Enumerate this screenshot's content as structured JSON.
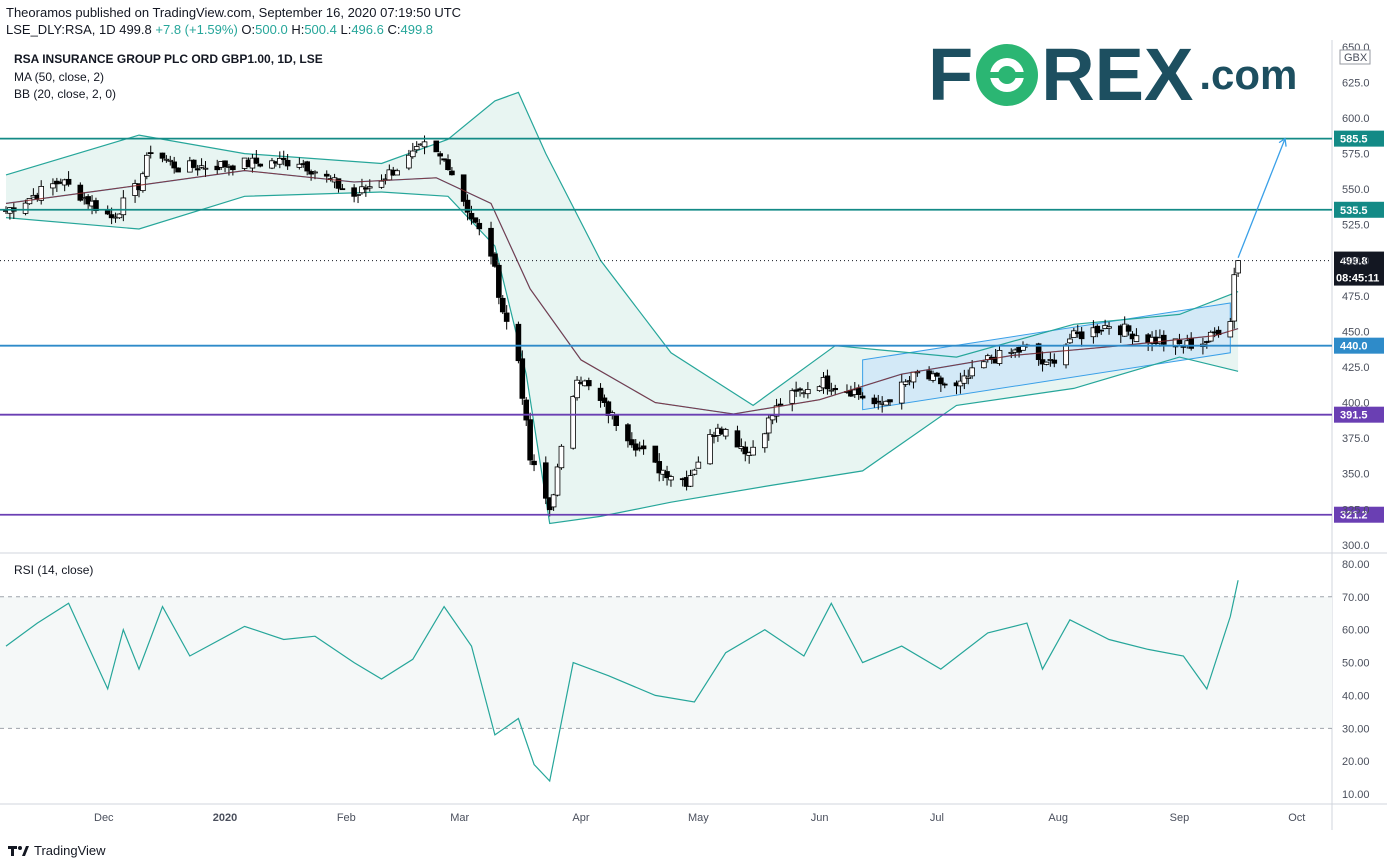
{
  "header": {
    "publisher_line": "Theoramos published on TradingView.com, September 16, 2020 07:19:50 UTC",
    "symbol": "LSE_DLY:RSA, 1D",
    "last": "499.8",
    "change": "+7.8 (+1.59%)",
    "o_label": "O:",
    "o_value": "500.0",
    "h_label": "H:",
    "h_value": "500.4",
    "l_label": "L:",
    "l_value": "496.6",
    "c_label": "C:",
    "c_value": "499.8"
  },
  "legend": {
    "title": "RSA INSURANCE GROUP PLC ORD GBP1.00, 1D, LSE",
    "ma": "MA (50, close, 2)",
    "bb": "BB (20, close, 2, 0)",
    "rsi": "RSI (14, close)"
  },
  "brand": {
    "fo": "F",
    "rex": "REX",
    "dotcom": ".com",
    "color": "#1d4f60",
    "accent": "#2bb673"
  },
  "footer": {
    "logo_icon": "tradingview-logo-icon",
    "label": "TradingView"
  },
  "colors": {
    "up": "#ffffff",
    "down": "#000000",
    "bb": "#26a69a",
    "bb_fill": "#e6f4f1",
    "ma": "#8b2a2a",
    "blue_ma": "#3aa0e8",
    "teal_level": "#138a86",
    "blue_level": "#2e8bc9",
    "purple_level": "#6a3fb3",
    "channel_fill": "#cfe6f8",
    "rsi": "#26a69a"
  },
  "chart_data": [
    {
      "type": "candlestick",
      "title": "RSA INSURANCE GROUP PLC ORD GBP1.00, 1D, LSE",
      "currency": "GBX",
      "ylim": [
        295,
        652
      ],
      "y_ticks": [
        300,
        325,
        350,
        375,
        400,
        425,
        450,
        475,
        500,
        525,
        550,
        575,
        600,
        625,
        650
      ],
      "y_tick_labels": [
        "300.0",
        "325.0",
        "350.0",
        "375.0",
        "400.0",
        "425.0",
        "450.0",
        "475.0",
        "500.0",
        "525.0",
        "550.0",
        "575.0",
        "600.0",
        "625.0",
        "650.0"
      ],
      "x_labels": [
        "Dec",
        "2020",
        "Feb",
        "Mar",
        "Apr",
        "May",
        "Jun",
        "Jul",
        "Aug",
        "Sep",
        "Oct"
      ],
      "x_label_dates": [
        "2019-12-01",
        "2020-01-01",
        "2020-02-01",
        "2020-03-01",
        "2020-04-01",
        "2020-05-01",
        "2020-06-01",
        "2020-07-01",
        "2020-08-01",
        "2020-09-01",
        "2020-10-01"
      ],
      "date_range": [
        "2019-11-06",
        "2020-10-10"
      ],
      "close_series": {
        "dates": [
          "2019-11-06",
          "2019-11-20",
          "2019-12-03",
          "2019-12-10",
          "2019-12-13",
          "2019-12-20",
          "2020-01-06",
          "2020-01-20",
          "2020-02-03",
          "2020-02-14",
          "2020-02-21",
          "2020-02-27",
          "2020-03-04",
          "2020-03-09",
          "2020-03-12",
          "2020-03-16",
          "2020-03-19",
          "2020-03-24",
          "2020-03-31",
          "2020-04-09",
          "2020-04-20",
          "2020-04-28",
          "2020-05-06",
          "2020-05-14",
          "2020-05-22",
          "2020-06-01",
          "2020-06-10",
          "2020-06-16",
          "2020-06-26",
          "2020-07-06",
          "2020-07-14",
          "2020-07-24",
          "2020-07-29",
          "2020-08-04",
          "2020-08-14",
          "2020-08-24",
          "2020-09-02",
          "2020-09-08",
          "2020-09-14",
          "2020-09-15",
          "2020-09-16"
        ],
        "values": [
          535,
          556,
          530,
          553,
          578,
          565,
          568,
          570,
          545,
          565,
          580,
          568,
          530,
          505,
          465,
          430,
          360,
          325,
          420,
          390,
          355,
          345,
          385,
          365,
          400,
          415,
          408,
          397,
          420,
          410,
          430,
          438,
          425,
          445,
          455,
          445,
          440,
          443,
          460,
          490,
          499.8
        ]
      },
      "ma_50_dates": [
        "2019-11-06",
        "2019-12-03",
        "2020-01-06",
        "2020-02-03",
        "2020-02-24",
        "2020-03-09",
        "2020-03-19",
        "2020-04-01",
        "2020-04-20",
        "2020-05-10",
        "2020-06-01",
        "2020-06-22",
        "2020-07-20",
        "2020-08-17",
        "2020-09-10",
        "2020-09-16"
      ],
      "ma_50_values": [
        540,
        550,
        563,
        555,
        558,
        540,
        480,
        430,
        400,
        392,
        402,
        420,
        433,
        440,
        447,
        452
      ],
      "bb_upper_dates": [
        "2019-11-06",
        "2019-12-10",
        "2020-01-06",
        "2020-02-10",
        "2020-02-27",
        "2020-03-10",
        "2020-03-16",
        "2020-03-23",
        "2020-04-06",
        "2020-04-24",
        "2020-05-15",
        "2020-06-05",
        "2020-07-06",
        "2020-08-05",
        "2020-09-01",
        "2020-09-16"
      ],
      "bb_upper_values": [
        560,
        588,
        575,
        568,
        585,
        612,
        618,
        575,
        500,
        435,
        398,
        440,
        432,
        455,
        462,
        478
      ],
      "bb_lower_dates": [
        "2019-11-06",
        "2019-12-10",
        "2020-01-06",
        "2020-02-10",
        "2020-02-27",
        "2020-03-10",
        "2020-03-18",
        "2020-03-24",
        "2020-04-06",
        "2020-04-24",
        "2020-05-20",
        "2020-06-12",
        "2020-07-06",
        "2020-08-05",
        "2020-09-01",
        "2020-09-16"
      ],
      "bb_lower_values": [
        530,
        522,
        545,
        548,
        545,
        510,
        420,
        315,
        320,
        330,
        342,
        352,
        398,
        410,
        432,
        422
      ],
      "horizontal_levels": [
        {
          "value": 585.5,
          "label": "585.5",
          "color": "#138a86"
        },
        {
          "value": 535.5,
          "label": "535.5",
          "color": "#138a86"
        },
        {
          "value": 440.0,
          "label": "440.0",
          "color": "#2e8bc9"
        },
        {
          "value": 391.5,
          "label": "391.5",
          "color": "#6a3fb3"
        },
        {
          "value": 321.2,
          "label": "321.2",
          "color": "#6a3fb3"
        }
      ],
      "price_label": {
        "value": 499.8,
        "label": "499.8",
        "countdown": "08:45:11"
      },
      "channel": {
        "start_date": "2020-06-12",
        "end_date": "2020-09-14",
        "upper": [
          430,
          470
        ],
        "lower": [
          395,
          435
        ]
      },
      "projection_arrow": {
        "from_date": "2020-09-16",
        "from": 499.8,
        "to_date": "2020-09-28",
        "to": 585.5
      }
    },
    {
      "type": "line",
      "title": "RSI (14, close)",
      "ylim": [
        7,
        83
      ],
      "y_ticks": [
        10,
        20,
        30,
        40,
        50,
        60,
        70,
        80
      ],
      "y_tick_labels": [
        "10.00",
        "20.00",
        "30.00",
        "40.00",
        "50.00",
        "60.00",
        "70.00",
        "80.00"
      ],
      "bands": [
        30,
        70
      ],
      "dates": [
        "2019-11-06",
        "2019-11-14",
        "2019-11-22",
        "2019-12-02",
        "2019-12-06",
        "2019-12-10",
        "2019-12-16",
        "2019-12-23",
        "2020-01-06",
        "2020-01-16",
        "2020-01-24",
        "2020-02-03",
        "2020-02-10",
        "2020-02-18",
        "2020-02-26",
        "2020-03-04",
        "2020-03-10",
        "2020-03-16",
        "2020-03-20",
        "2020-03-24",
        "2020-03-30",
        "2020-04-08",
        "2020-04-20",
        "2020-04-30",
        "2020-05-08",
        "2020-05-18",
        "2020-05-28",
        "2020-06-04",
        "2020-06-12",
        "2020-06-22",
        "2020-07-02",
        "2020-07-14",
        "2020-07-24",
        "2020-07-28",
        "2020-08-04",
        "2020-08-14",
        "2020-08-24",
        "2020-09-02",
        "2020-09-08",
        "2020-09-14",
        "2020-09-16"
      ],
      "values": [
        55,
        62,
        68,
        42,
        60,
        48,
        67,
        52,
        61,
        57,
        58,
        50,
        45,
        51,
        67,
        55,
        28,
        33,
        19,
        14,
        50,
        46,
        40,
        38,
        53,
        60,
        52,
        68,
        50,
        55,
        48,
        59,
        62,
        48,
        63,
        57,
        54,
        52,
        42,
        64,
        75
      ]
    }
  ]
}
